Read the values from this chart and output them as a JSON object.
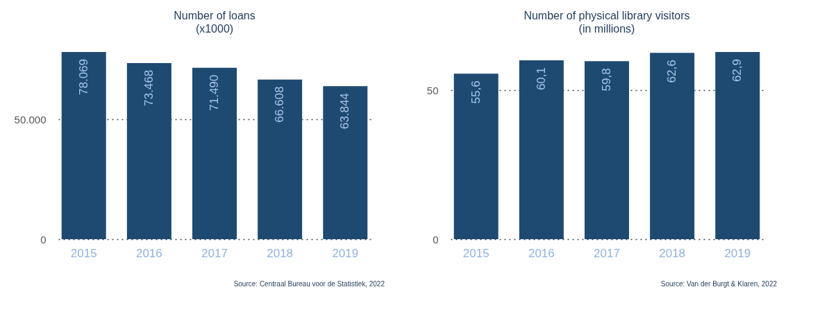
{
  "chart_data": [
    {
      "type": "bar",
      "title": "Number of loans",
      "subtitle": "(x1000)",
      "categories": [
        "2015",
        "2016",
        "2017",
        "2018",
        "2019"
      ],
      "values": [
        78069,
        73468,
        71490,
        66608,
        63844
      ],
      "value_labels": [
        "78.069",
        "73.468",
        "71.490",
        "66.608",
        "63.844"
      ],
      "color": "#1e4a72",
      "ylim": [
        0,
        78069
      ],
      "yticks": [
        0,
        {
          "value": 50000,
          "label": "50.000"
        }
      ],
      "grid": "y",
      "annotations": [
        "Source:  Centraal Bureau voor de Statistiek, 2022"
      ]
    },
    {
      "type": "bar",
      "title": "Number of physical library visitors",
      "subtitle": "(in millions)",
      "categories": [
        "2015",
        "2016",
        "2017",
        "2018",
        "2019"
      ],
      "values": [
        55.6,
        60.1,
        59.8,
        62.6,
        62.9
      ],
      "value_labels": [
        "55,6",
        "60,1",
        "59,8",
        "62,6",
        "62,9"
      ],
      "color": "#1e4a72",
      "ylim": [
        0,
        62.9
      ],
      "yticks": [
        0,
        50
      ],
      "grid": "y",
      "annotations": [
        "Source:  Van der Burgt & Klaren, 2022"
      ]
    }
  ]
}
